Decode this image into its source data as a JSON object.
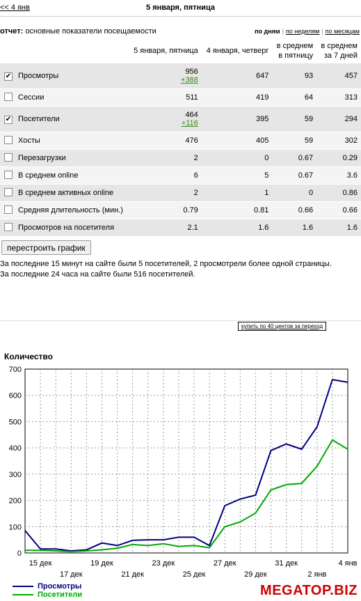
{
  "nav": {
    "prev": "<< 4 янв",
    "title": "5 января, пятница"
  },
  "report": {
    "label": "отчет:",
    "text": "основные показатели посещаемости"
  },
  "periods": {
    "days": "по дням",
    "weeks": "по неделям",
    "months": "по месяцам"
  },
  "table": {
    "headers": {
      "day": "5 января, пятница",
      "prev": "4 января, четверг",
      "avg_friday_1": "в среднем",
      "avg_friday_2": "в пятницу",
      "avg_7_1": "в среднем",
      "avg_7_2": "за 7 дней"
    },
    "rows": [
      {
        "checked": true,
        "label": "Просмотры",
        "day": "956",
        "delta": "+388",
        "prev": "647",
        "avg_friday": "93",
        "avg_7": "457"
      },
      {
        "checked": false,
        "label": "Сессии",
        "day": "511",
        "prev": "419",
        "avg_friday": "64",
        "avg_7": "313"
      },
      {
        "checked": true,
        "label": "Посетители",
        "day": "464",
        "delta": "+116",
        "prev": "395",
        "avg_friday": "59",
        "avg_7": "294"
      },
      {
        "checked": false,
        "label": "Хосты",
        "day": "476",
        "prev": "405",
        "avg_friday": "59",
        "avg_7": "302"
      },
      {
        "checked": false,
        "label": "Перезагрузки",
        "day": "2",
        "prev": "0",
        "avg_friday": "0.67",
        "avg_7": "0.29"
      },
      {
        "checked": false,
        "label": "В среднем online",
        "day": "6",
        "prev": "5",
        "avg_friday": "0.67",
        "avg_7": "3.6"
      },
      {
        "checked": false,
        "label": "В среднем активных online",
        "day": "2",
        "prev": "1",
        "avg_friday": "0",
        "avg_7": "0.86"
      },
      {
        "checked": false,
        "label": "Средняя длительность (мин.)",
        "day": "0.79",
        "prev": "0.81",
        "avg_friday": "0.66",
        "avg_7": "0.66"
      },
      {
        "checked": false,
        "label": "Просмотров на посетителя",
        "day": "2.1",
        "prev": "1.6",
        "avg_friday": "1.6",
        "avg_7": "1.6"
      }
    ]
  },
  "rebuild_button": "перестроить график",
  "info": {
    "line1": "За последние 15 минут на сайте были 5 посетителей, 2 просмотрели более одной страницы.",
    "line2": "За последние 24 часа на сайте были 516 посетителей."
  },
  "buy_link": "купить по 40 центов за переход",
  "brand": "MEGATOP.BIZ",
  "chart_data": {
    "type": "line",
    "title": "Количество",
    "ylim": [
      0,
      700
    ],
    "yticks": [
      0,
      100,
      200,
      300,
      400,
      500,
      600,
      700
    ],
    "grid": true,
    "legend_position": "bottom-left",
    "x_tick_labels_upper": [
      "15 дек",
      "19 дек",
      "23 дек",
      "27 дек",
      "31 дек",
      "4 янв"
    ],
    "x_tick_labels_lower": [
      "17 дек",
      "21 дек",
      "25 дек",
      "29 дек",
      "2 янв"
    ],
    "x": [
      "14 дек",
      "15 дек",
      "16 дек",
      "17 дек",
      "18 дек",
      "19 дек",
      "20 дек",
      "21 дек",
      "22 дек",
      "23 дек",
      "24 дек",
      "25 дек",
      "26 дек",
      "27 дек",
      "28 дек",
      "29 дек",
      "30 дек",
      "31 дек",
      "1 янв",
      "2 янв",
      "3 янв",
      "4 янв"
    ],
    "series": [
      {
        "name": "Просмотры",
        "color": "#000080",
        "values": [
          85,
          15,
          15,
          8,
          12,
          38,
          28,
          48,
          50,
          50,
          60,
          60,
          28,
          180,
          205,
          220,
          390,
          415,
          395,
          480,
          660,
          650
        ]
      },
      {
        "name": "Посетители",
        "color": "#00aa00",
        "values": [
          10,
          10,
          8,
          5,
          8,
          12,
          18,
          32,
          28,
          35,
          25,
          28,
          20,
          100,
          118,
          152,
          240,
          260,
          265,
          330,
          430,
          395
        ]
      }
    ]
  }
}
